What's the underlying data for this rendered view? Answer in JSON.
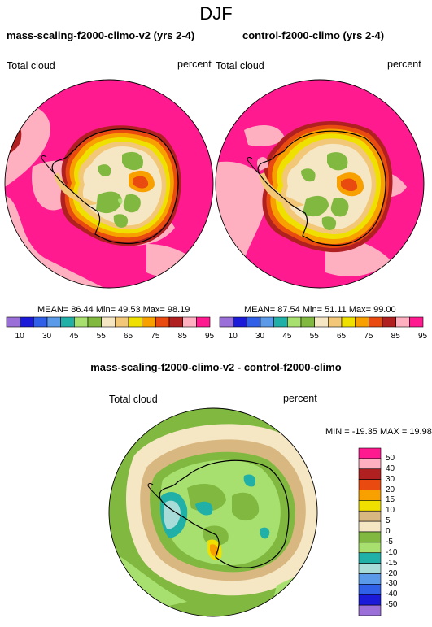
{
  "figure": {
    "season": "DJF",
    "diff_title": "mass-scaling-f2000-climo-v2 - control-f2000-climo"
  },
  "panels": [
    {
      "title": "mass-scaling-f2000-climo-v2 (yrs 2-4)",
      "variable": "Total cloud",
      "units": "percent",
      "stats": "MEAN=  86.44  Min=  49.53  Max=  98.19"
    },
    {
      "title": "control-f2000-climo (yrs 2-4)",
      "variable": "Total cloud",
      "units": "percent",
      "stats": "MEAN=  87.54  Min=  51.11  Max=  99.00"
    },
    {
      "variable": "Total cloud",
      "units": "percent",
      "stats": "MIN = -19.35 MAX =  19.98"
    }
  ],
  "colorbar_top": {
    "labels": [
      "10",
      "30",
      "45",
      "55",
      "65",
      "75",
      "85",
      "95"
    ],
    "colors": [
      "#9a6fd8",
      "#1a1ad8",
      "#3060e8",
      "#5a9ae8",
      "#20b0a8",
      "#a8e070",
      "#80b840",
      "#f5e6c4",
      "#f2c878",
      "#f0e000",
      "#f8a000",
      "#e84a10",
      "#b02020",
      "#ffb0c0",
      "#ff1a90"
    ]
  },
  "colorbar_diff": {
    "labels": [
      "50",
      "40",
      "30",
      "20",
      "15",
      "10",
      "5",
      "0",
      "-5",
      "-10",
      "-15",
      "-20",
      "-30",
      "-40",
      "-50"
    ],
    "colors": [
      "#ff1a90",
      "#ffb0c0",
      "#b02020",
      "#e84a10",
      "#f8a000",
      "#f0e000",
      "#d8b880",
      "#f5e6c4",
      "#80b840",
      "#a8e070",
      "#20b0a8",
      "#a8dcd8",
      "#5a9ae8",
      "#3060e8",
      "#1a1ad8",
      "#9a6fd8"
    ]
  }
}
